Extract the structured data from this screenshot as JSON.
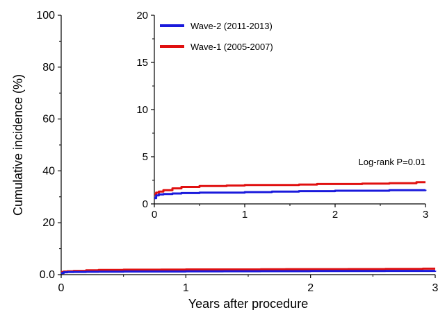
{
  "chart_data": [
    {
      "type": "line",
      "role": "main",
      "xlabel": "Years after procedure",
      "ylabel": "Cumulative incidence (%)",
      "xlim": [
        0,
        3
      ],
      "ylim": [
        0,
        100
      ],
      "xticks": [
        0,
        1,
        2,
        3
      ],
      "xtick_labels": [
        "0",
        "1",
        "2",
        "3"
      ],
      "yticks": [
        0,
        20,
        40,
        60,
        80,
        100
      ],
      "ytick_labels": [
        "0.0",
        "20",
        "40",
        "60",
        "80",
        "100"
      ],
      "grid": false,
      "series": [
        {
          "name": "Wave-2 (2011-2013)",
          "color": "#1a1adc",
          "x": [
            0,
            0.02,
            0.05,
            0.1,
            0.2,
            0.3,
            0.5,
            0.8,
            1.0,
            1.3,
            1.6,
            1.8,
            2.0,
            2.3,
            2.6,
            2.8,
            3.0
          ],
          "y": [
            0.6,
            0.9,
            1.0,
            1.05,
            1.1,
            1.15,
            1.2,
            1.2,
            1.25,
            1.3,
            1.35,
            1.35,
            1.4,
            1.4,
            1.45,
            1.45,
            1.5
          ]
        },
        {
          "name": "Wave-1 (2005-2007)",
          "color": "#e01010",
          "x": [
            0,
            0.02,
            0.05,
            0.1,
            0.2,
            0.3,
            0.5,
            0.8,
            1.0,
            1.3,
            1.6,
            1.8,
            2.0,
            2.3,
            2.6,
            2.85,
            2.9,
            3.0
          ],
          "y": [
            1.0,
            1.2,
            1.3,
            1.45,
            1.65,
            1.8,
            1.9,
            1.95,
            2.0,
            2.0,
            2.05,
            2.1,
            2.1,
            2.15,
            2.2,
            2.2,
            2.3,
            2.3
          ]
        }
      ]
    },
    {
      "type": "line",
      "role": "inset",
      "xlim": [
        0,
        3
      ],
      "ylim": [
        0,
        20
      ],
      "xticks": [
        0,
        1,
        2,
        3
      ],
      "xtick_labels": [
        "0",
        "1",
        "2",
        "3"
      ],
      "yticks": [
        0,
        5,
        10,
        15,
        20
      ],
      "ytick_labels": [
        "0",
        "5",
        "10",
        "15",
        "20"
      ],
      "grid": false,
      "legend": "top-left",
      "annotation": "Log-rank P=0.01",
      "series": [
        {
          "name": "Wave-2 (2011-2013)",
          "color": "#1a1adc",
          "x": [
            0,
            0.02,
            0.05,
            0.1,
            0.2,
            0.3,
            0.5,
            0.8,
            1.0,
            1.3,
            1.6,
            1.8,
            2.0,
            2.3,
            2.6,
            2.8,
            3.0
          ],
          "y": [
            0.6,
            0.9,
            1.0,
            1.05,
            1.1,
            1.15,
            1.2,
            1.2,
            1.25,
            1.3,
            1.35,
            1.35,
            1.4,
            1.4,
            1.45,
            1.45,
            1.5
          ]
        },
        {
          "name": "Wave-1 (2005-2007)",
          "color": "#e01010",
          "x": [
            0,
            0.02,
            0.05,
            0.1,
            0.2,
            0.3,
            0.5,
            0.8,
            1.0,
            1.3,
            1.6,
            1.8,
            2.0,
            2.3,
            2.6,
            2.85,
            2.9,
            3.0
          ],
          "y": [
            1.0,
            1.2,
            1.3,
            1.45,
            1.65,
            1.8,
            1.9,
            1.95,
            2.0,
            2.0,
            2.05,
            2.1,
            2.1,
            2.15,
            2.2,
            2.2,
            2.3,
            2.3
          ]
        }
      ]
    }
  ]
}
